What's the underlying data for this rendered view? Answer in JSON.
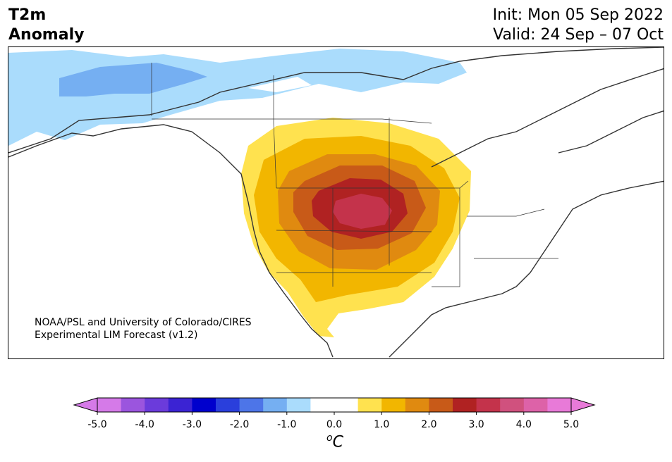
{
  "title": {
    "line1": "T2m",
    "line2": "Anomaly"
  },
  "header_right": {
    "line1": "Init: Mon 05 Sep 2022",
    "line2": "Valid: 24 Sep – 07 Oct"
  },
  "credit": {
    "line1": "NOAA/PSL and University of Colorado/CIRES",
    "line2": "Experimental LIM Forecast (v1.2)"
  },
  "map": {
    "region": "North America",
    "projection": "Lambert conformal",
    "land_outline_color": "#333333",
    "variable": "2m temperature anomaly"
  },
  "colorbar": {
    "unit_label": "C",
    "unit_prefix": "o",
    "tick_labels": [
      "-5.0",
      "-4.0",
      "-3.0",
      "-2.0",
      "-1.0",
      "0.0",
      "1.0",
      "2.0",
      "3.0",
      "4.0",
      "5.0"
    ],
    "bins": [
      {
        "color": "#d57ae8"
      },
      {
        "color": "#9b55de"
      },
      {
        "color": "#6b3bdb"
      },
      {
        "color": "#3b23d3"
      },
      {
        "color": "#0000cd"
      },
      {
        "color": "#2a3fdc"
      },
      {
        "color": "#4d75e8"
      },
      {
        "color": "#75aff2"
      },
      {
        "color": "#aadcfc"
      },
      {
        "color": "#ffffff"
      },
      {
        "color": "#ffffff"
      },
      {
        "color": "#ffe24f"
      },
      {
        "color": "#f2b600"
      },
      {
        "color": "#e08a10"
      },
      {
        "color": "#c85a18"
      },
      {
        "color": "#b02222"
      },
      {
        "color": "#c4334b"
      },
      {
        "color": "#d0517e"
      },
      {
        "color": "#dd62a8"
      },
      {
        "color": "#e87ad8"
      }
    ],
    "under_color": "#d57ae8",
    "over_color": "#e87ad8"
  }
}
